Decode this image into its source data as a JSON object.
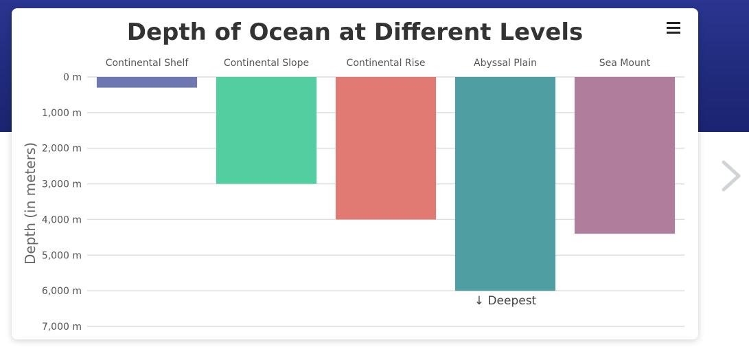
{
  "chart_data": {
    "type": "bar",
    "title": "Depth of Ocean at Different Levels",
    "ylabel": "Depth (in meters)",
    "categories": [
      "Continental Shelf",
      "Continental Slope",
      "Continental Rise",
      "Abyssal Plain",
      "Sea Mount"
    ],
    "values": [
      300,
      3000,
      4000,
      6000,
      4400
    ],
    "colors": [
      "#6e77b0",
      "#52cea0",
      "#e07a72",
      "#4e9ea2",
      "#ae7e9c"
    ],
    "ylim": [
      0,
      7000
    ],
    "yticks": [
      0,
      1000,
      2000,
      3000,
      4000,
      5000,
      6000,
      7000
    ],
    "ytick_labels": [
      "0 m",
      "1,000 m",
      "2,000 m",
      "3,000 m",
      "4,000 m",
      "5,000 m",
      "6,000 m",
      "7,000 m"
    ],
    "y_axis_reversed": true,
    "x_axis_position": "top",
    "grid": true,
    "annotations": [
      {
        "category": "Abyssal Plain",
        "text": "↓ Deepest"
      }
    ]
  },
  "menu": {
    "icon": "hamburger-menu-icon"
  },
  "navigation": {
    "next_icon": "chevron-right-icon"
  }
}
